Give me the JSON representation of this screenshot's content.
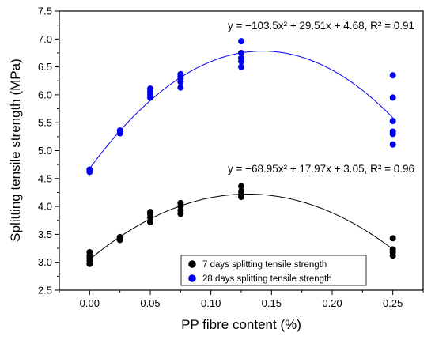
{
  "chart_data": {
    "type": "scatter",
    "xlabel": "PP fibre content (%)",
    "ylabel": "Splitting tensile strength (MPa)",
    "xlim": [
      -0.025,
      0.275
    ],
    "ylim": [
      2.5,
      7.5
    ],
    "x_ticks": [
      "0.00",
      "0.05",
      "0.10",
      "0.15",
      "0.20",
      "0.25"
    ],
    "x_tick_values": [
      0.0,
      0.05,
      0.1,
      0.15,
      0.2,
      0.25
    ],
    "y_ticks": [
      "2.5",
      "3.0",
      "3.5",
      "4.0",
      "4.5",
      "5.0",
      "5.5",
      "6.0",
      "6.5",
      "7.0",
      "7.5"
    ],
    "y_tick_values": [
      2.5,
      3.0,
      3.5,
      4.0,
      4.5,
      5.0,
      5.5,
      6.0,
      6.5,
      7.0,
      7.5
    ],
    "grid": false,
    "legend_position": "bottom-center",
    "series": [
      {
        "name": "7 days splitting tensile strength",
        "color": "#000000",
        "points": [
          [
            0.0,
            2.97
          ],
          [
            0.0,
            3.03
          ],
          [
            0.0,
            3.08
          ],
          [
            0.0,
            3.12
          ],
          [
            0.0,
            3.18
          ],
          [
            0.025,
            3.4
          ],
          [
            0.025,
            3.43
          ],
          [
            0.025,
            3.45
          ],
          [
            0.05,
            3.72
          ],
          [
            0.05,
            3.8
          ],
          [
            0.05,
            3.86
          ],
          [
            0.05,
            3.9
          ],
          [
            0.075,
            3.87
          ],
          [
            0.075,
            3.93
          ],
          [
            0.075,
            4.0
          ],
          [
            0.075,
            4.06
          ],
          [
            0.125,
            4.17
          ],
          [
            0.125,
            4.21
          ],
          [
            0.125,
            4.27
          ],
          [
            0.125,
            4.36
          ],
          [
            0.25,
            3.12
          ],
          [
            0.25,
            3.18
          ],
          [
            0.25,
            3.23
          ],
          [
            0.25,
            3.43
          ]
        ],
        "fit": {
          "a": -68.95,
          "b": 17.97,
          "c": 3.05,
          "label": "y = −68.95x² + 17.97x + 3.05, R² = 0.96"
        }
      },
      {
        "name": "28 days splitting tensile strength",
        "color": "#0000ee",
        "points": [
          [
            0.0,
            4.62
          ],
          [
            0.0,
            4.66
          ],
          [
            0.025,
            5.31
          ],
          [
            0.025,
            5.36
          ],
          [
            0.05,
            5.95
          ],
          [
            0.05,
            6.01
          ],
          [
            0.05,
            6.06
          ],
          [
            0.05,
            6.11
          ],
          [
            0.075,
            6.13
          ],
          [
            0.075,
            6.23
          ],
          [
            0.075,
            6.29
          ],
          [
            0.075,
            6.33
          ],
          [
            0.075,
            6.37
          ],
          [
            0.125,
            6.5
          ],
          [
            0.125,
            6.6
          ],
          [
            0.125,
            6.66
          ],
          [
            0.125,
            6.75
          ],
          [
            0.125,
            6.96
          ],
          [
            0.25,
            5.11
          ],
          [
            0.25,
            5.3
          ],
          [
            0.25,
            5.34
          ],
          [
            0.25,
            5.53
          ],
          [
            0.25,
            5.95
          ],
          [
            0.25,
            6.35
          ]
        ],
        "fit": {
          "a": -103.5,
          "b": 29.51,
          "c": 4.68,
          "label": "y = −103.5x² + 29.51x + 4.68, R² = 0.91"
        }
      }
    ]
  }
}
